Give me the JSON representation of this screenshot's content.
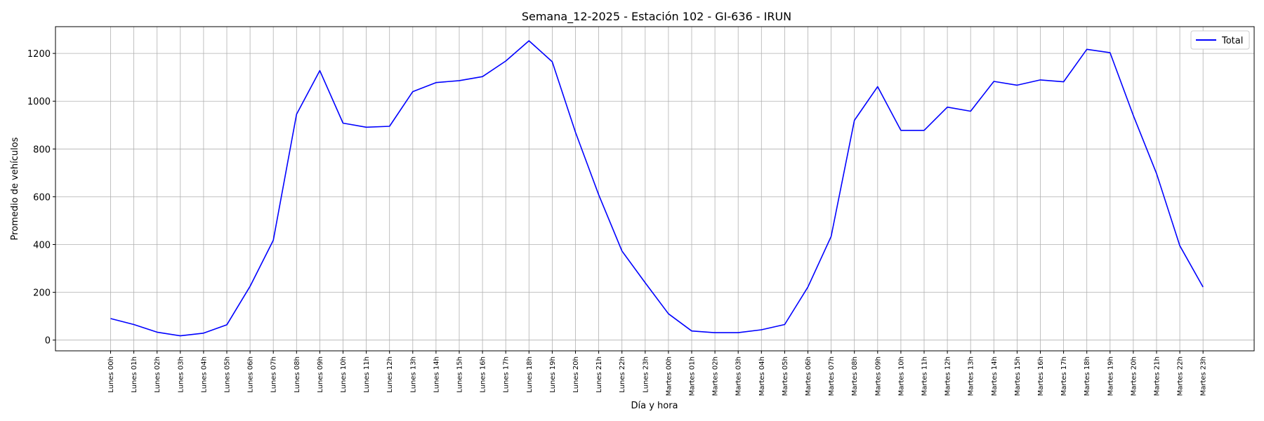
{
  "chart_data": {
    "type": "line",
    "title": "Semana_12-2025 - Estación 102 - GI-636  - IRUN",
    "xlabel": "Día y hora",
    "ylabel": "Promedio de vehículos",
    "ylim": [
      -45,
      1312
    ],
    "yticks": [
      0,
      200,
      400,
      600,
      800,
      1000,
      1200
    ],
    "grid": true,
    "legend_position": "top-right",
    "categories": [
      "Lunes 00h",
      "Lunes 01h",
      "Lunes 02h",
      "Lunes 03h",
      "Lunes 04h",
      "Lunes 05h",
      "Lunes 06h",
      "Lunes 07h",
      "Lunes 08h",
      "Lunes 09h",
      "Lunes 10h",
      "Lunes 11h",
      "Lunes 12h",
      "Lunes 13h",
      "Lunes 14h",
      "Lunes 15h",
      "Lunes 16h",
      "Lunes 17h",
      "Lunes 18h",
      "Lunes 19h",
      "Lunes 20h",
      "Lunes 21h",
      "Lunes 22h",
      "Lunes 23h",
      "Martes 00h",
      "Martes 01h",
      "Martes 02h",
      "Martes 03h",
      "Martes 04h",
      "Martes 05h",
      "Martes 06h",
      "Martes 07h",
      "Martes 08h",
      "Martes 09h",
      "Martes 10h",
      "Martes 11h",
      "Martes 12h",
      "Martes 13h",
      "Martes 14h",
      "Martes 15h",
      "Martes 16h",
      "Martes 17h",
      "Martes 18h",
      "Martes 19h",
      "Martes 20h",
      "Martes 21h",
      "Martes 22h",
      "Martes 23h"
    ],
    "series": [
      {
        "name": "Total",
        "color": "#0000ff",
        "values": [
          90,
          65,
          33,
          18,
          29,
          64,
          225,
          418,
          945,
          1128,
          908,
          891,
          895,
          1040,
          1078,
          1086,
          1103,
          1168,
          1253,
          1165,
          870,
          608,
          373,
          240,
          110,
          38,
          31,
          31,
          43,
          65,
          222,
          434,
          920,
          1061,
          878,
          878,
          975,
          958,
          1083,
          1067,
          1089,
          1081,
          1217,
          1203,
          940,
          697,
          395,
          222
        ]
      }
    ]
  }
}
